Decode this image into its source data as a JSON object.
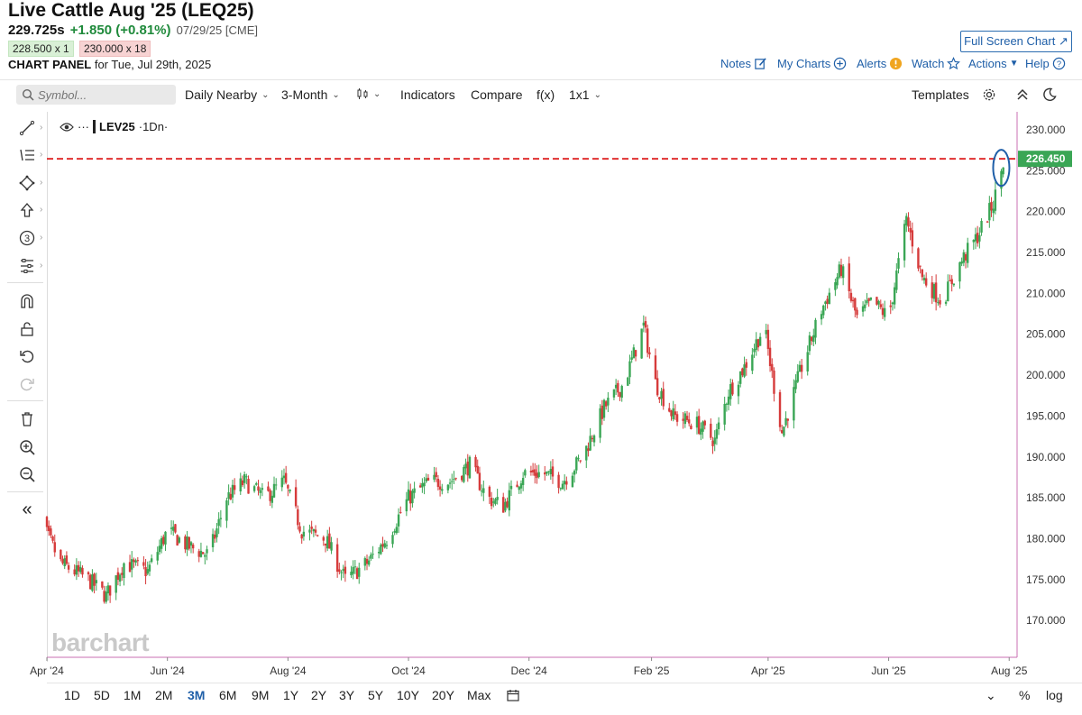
{
  "header": {
    "title": "Live Cattle Aug '25 (LEQ25)",
    "last": "229.725s",
    "change": "+1.850 (+0.81%)",
    "date": "07/29/25 [CME]",
    "bid": "228.500 x 1",
    "ask": "230.000 x 18",
    "panel_bold": "CHART PANEL",
    "panel_rest": "for Tue, Jul 29th, 2025"
  },
  "top_links": {
    "fullscreen": "Full Screen Chart",
    "notes": "Notes",
    "my_charts": "My Charts",
    "alerts": "Alerts",
    "watch": "Watch",
    "actions": "Actions",
    "help": "Help"
  },
  "toolbar": {
    "symbol_placeholder": "Symbol...",
    "daily": "Daily Nearby",
    "period": "3-Month",
    "indicators": "Indicators",
    "compare": "Compare",
    "fx": "f(x)",
    "layout": "1x1",
    "templates": "Templates"
  },
  "legend": {
    "symbol": "LEV25",
    "interval": "·1Dn·",
    "dots": "···"
  },
  "watermark": "barchart",
  "ranges": [
    "1D",
    "5D",
    "1M",
    "2M",
    "3M",
    "6M",
    "9M",
    "1Y",
    "2Y",
    "3Y",
    "5Y",
    "10Y",
    "20Y",
    "Max"
  ],
  "active_range": "3M",
  "bottom_right": {
    "pct": "%",
    "log": "log"
  },
  "colors": {
    "up": "#3aa655",
    "down": "#d63b3b",
    "price_line": "#e03030",
    "accent": "#1f5fa8",
    "badge": "#3aa655",
    "ellipse": "#1f5fa8"
  },
  "chart_data": {
    "type": "candlestick",
    "y_ticks": [
      "230.000",
      "225.000",
      "220.000",
      "215.000",
      "210.000",
      "205.000",
      "200.000",
      "195.000",
      "190.000",
      "185.000",
      "180.000",
      "175.000",
      "170.000"
    ],
    "ylim": [
      165.5,
      232.2
    ],
    "x_ticks": [
      {
        "label": "Apr '24",
        "date": "2024-04-01"
      },
      {
        "label": "Jun '24",
        "date": "2024-06-01"
      },
      {
        "label": "Aug '24",
        "date": "2024-08-01"
      },
      {
        "label": "Oct '24",
        "date": "2024-10-01"
      },
      {
        "label": "Dec '24",
        "date": "2024-12-01"
      },
      {
        "label": "Feb '25",
        "date": "2025-02-01"
      },
      {
        "label": "Apr '25",
        "date": "2025-04-01"
      },
      {
        "label": "Jun '25",
        "date": "2025-06-01"
      },
      {
        "label": "Aug '25",
        "date": "2025-08-01"
      }
    ],
    "x_range": [
      "2024-04-01",
      "2025-08-05"
    ],
    "price_line": 226.45,
    "price_label": "226.450",
    "closes": [
      {
        "date": "2024-03-25",
        "close": 184
      },
      {
        "date": "2024-04-08",
        "close": 177
      },
      {
        "date": "2024-04-22",
        "close": 175
      },
      {
        "date": "2024-05-01",
        "close": 173
      },
      {
        "date": "2024-05-10",
        "close": 177
      },
      {
        "date": "2024-05-22",
        "close": 176
      },
      {
        "date": "2024-06-01",
        "close": 181
      },
      {
        "date": "2024-06-12",
        "close": 179
      },
      {
        "date": "2024-06-22",
        "close": 178
      },
      {
        "date": "2024-07-01",
        "close": 185
      },
      {
        "date": "2024-07-10",
        "close": 187
      },
      {
        "date": "2024-07-20",
        "close": 185
      },
      {
        "date": "2024-07-30",
        "close": 187
      },
      {
        "date": "2024-08-08",
        "close": 181
      },
      {
        "date": "2024-08-20",
        "close": 180
      },
      {
        "date": "2024-08-30",
        "close": 175
      },
      {
        "date": "2024-09-10",
        "close": 177
      },
      {
        "date": "2024-09-20",
        "close": 180
      },
      {
        "date": "2024-10-01",
        "close": 185
      },
      {
        "date": "2024-10-12",
        "close": 187
      },
      {
        "date": "2024-10-22",
        "close": 187
      },
      {
        "date": "2024-11-01",
        "close": 189
      },
      {
        "date": "2024-11-10",
        "close": 185
      },
      {
        "date": "2024-11-18",
        "close": 184
      },
      {
        "date": "2024-11-28",
        "close": 188
      },
      {
        "date": "2024-12-08",
        "close": 188
      },
      {
        "date": "2024-12-18",
        "close": 187
      },
      {
        "date": "2024-12-28",
        "close": 190
      },
      {
        "date": "2025-01-08",
        "close": 196
      },
      {
        "date": "2025-01-18",
        "close": 199
      },
      {
        "date": "2025-01-28",
        "close": 206
      },
      {
        "date": "2025-02-03",
        "close": 199
      },
      {
        "date": "2025-02-12",
        "close": 195
      },
      {
        "date": "2025-02-24",
        "close": 194
      },
      {
        "date": "2025-03-05",
        "close": 192
      },
      {
        "date": "2025-03-12",
        "close": 198
      },
      {
        "date": "2025-03-20",
        "close": 201
      },
      {
        "date": "2025-03-30",
        "close": 206
      },
      {
        "date": "2025-04-03",
        "close": 200
      },
      {
        "date": "2025-04-08",
        "close": 193
      },
      {
        "date": "2025-04-18",
        "close": 201
      },
      {
        "date": "2025-04-28",
        "close": 208
      },
      {
        "date": "2025-05-08",
        "close": 213
      },
      {
        "date": "2025-05-16",
        "close": 207
      },
      {
        "date": "2025-05-24",
        "close": 209
      },
      {
        "date": "2025-06-01",
        "close": 207
      },
      {
        "date": "2025-06-10",
        "close": 219
      },
      {
        "date": "2025-06-18",
        "close": 212
      },
      {
        "date": "2025-06-28",
        "close": 209
      },
      {
        "date": "2025-07-08",
        "close": 214
      },
      {
        "date": "2025-07-16",
        "close": 217
      },
      {
        "date": "2025-07-24",
        "close": 221
      },
      {
        "date": "2025-07-29",
        "close": 226
      }
    ]
  }
}
